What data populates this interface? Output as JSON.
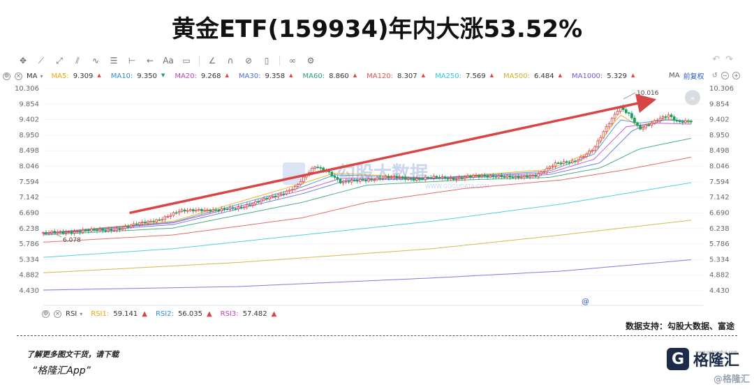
{
  "headline": "黄金ETF(159934)年内大涨53.52%",
  "toolbar": {
    "icons": [
      "crosshair-icon",
      "line-icon",
      "ray-icon",
      "channel-icon",
      "wave-icon",
      "fib-icon",
      "range-icon",
      "arrow-left-icon",
      "text-icon",
      "note-icon",
      "ruler-icon",
      "magnet-icon",
      "hide-icon",
      "trash-icon",
      "link-icon",
      "settings-icon"
    ],
    "text_tool": "Aa"
  },
  "ma_label": "MA",
  "ma_lines": [
    {
      "name": "MA5:",
      "value": "9.309",
      "color": "#f0a500",
      "dir": "▲"
    },
    {
      "name": "MA10:",
      "value": "9.350",
      "color": "#2a8bd8",
      "dir": "▼"
    },
    {
      "name": "MA20:",
      "value": "9.268",
      "color": "#c040c0",
      "dir": "▲"
    },
    {
      "name": "MA30:",
      "value": "9.358",
      "color": "#4a6fe0",
      "dir": "▲"
    },
    {
      "name": "MA60:",
      "value": "8.860",
      "color": "#2aa070",
      "dir": "▲"
    },
    {
      "name": "MA120:",
      "value": "8.307",
      "color": "#e05050",
      "dir": "▲"
    },
    {
      "name": "MA250:",
      "value": "7.569",
      "color": "#30c8d8",
      "dir": "▲"
    },
    {
      "name": "MA500:",
      "value": "6.484",
      "color": "#c8b030",
      "dir": "▲"
    },
    {
      "name": "MA1000:",
      "value": "5.329",
      "color": "#7a5ad8",
      "dir": "▲"
    }
  ],
  "ma_right_label": "MA",
  "adjust_label": "前复权",
  "rsi_label": "RSI",
  "rsi_lines": [
    {
      "name": "RSI1:",
      "value": "59.141",
      "color": "#f0a500",
      "dir": "▲"
    },
    {
      "name": "RSI2:",
      "value": "56.035",
      "color": "#2a8bd8",
      "dir": "▲"
    },
    {
      "name": "RSI3:",
      "value": "57.482",
      "color": "#c040c0",
      "dir": "▲"
    }
  ],
  "watermark": {
    "text": "勾股大数据",
    "url": "WWW.GOGUDATA.COM"
  },
  "source": "数据支持：勾股大数据、富途",
  "download_text": "了解更多图文干货，请下载",
  "app_text": "“格隆汇App”",
  "brand": {
    "logo": "G",
    "name": "格隆汇",
    "url": "www.gelonghui.com",
    "footer": "@格隆汇"
  },
  "colors": {
    "up": "#e04040",
    "down": "#1a9e5a",
    "arrow": "#d84545"
  },
  "chart_data": {
    "type": "candlestick",
    "y_ticks": [
      "10.306",
      "9.854",
      "9.402",
      "8.950",
      "8.498",
      "8.046",
      "7.594",
      "7.142",
      "6.690",
      "6.238",
      "5.786",
      "5.334",
      "4.882",
      "4.430"
    ],
    "ylim": [
      4.43,
      10.306
    ],
    "annotations": {
      "high": "10.016",
      "low": "6.078"
    },
    "close_path": [
      [
        0,
        6.1
      ],
      [
        0.03,
        6.12
      ],
      [
        0.06,
        6.18
      ],
      [
        0.09,
        6.17
      ],
      [
        0.12,
        6.25
      ],
      [
        0.15,
        6.38
      ],
      [
        0.18,
        6.52
      ],
      [
        0.21,
        6.72
      ],
      [
        0.24,
        6.8
      ],
      [
        0.27,
        6.75
      ],
      [
        0.3,
        6.85
      ],
      [
        0.33,
        7.0
      ],
      [
        0.36,
        7.2
      ],
      [
        0.39,
        7.45
      ],
      [
        0.42,
        8.05
      ],
      [
        0.44,
        7.9
      ],
      [
        0.46,
        7.55
      ],
      [
        0.49,
        7.65
      ],
      [
        0.52,
        7.7
      ],
      [
        0.55,
        7.72
      ],
      [
        0.58,
        7.68
      ],
      [
        0.61,
        7.72
      ],
      [
        0.64,
        7.7
      ],
      [
        0.67,
        7.75
      ],
      [
        0.7,
        7.78
      ],
      [
        0.73,
        7.7
      ],
      [
        0.76,
        7.8
      ],
      [
        0.79,
        8.1
      ],
      [
        0.82,
        8.2
      ],
      [
        0.85,
        8.55
      ],
      [
        0.87,
        9.2
      ],
      [
        0.89,
        9.8
      ],
      [
        0.905,
        9.55
      ],
      [
        0.92,
        9.1
      ],
      [
        0.935,
        9.25
      ],
      [
        0.95,
        9.45
      ],
      [
        0.965,
        9.55
      ],
      [
        0.98,
        9.3
      ],
      [
        1.0,
        9.35
      ]
    ],
    "ma_series": {
      "MA5": [
        [
          0,
          6.1
        ],
        [
          0.2,
          6.45
        ],
        [
          0.4,
          7.55
        ],
        [
          0.45,
          7.85
        ],
        [
          0.6,
          7.7
        ],
        [
          0.78,
          7.95
        ],
        [
          0.85,
          8.5
        ],
        [
          0.89,
          9.55
        ],
        [
          0.92,
          9.2
        ],
        [
          0.96,
          9.45
        ],
        [
          1.0,
          9.31
        ]
      ],
      "MA10": [
        [
          0,
          6.1
        ],
        [
          0.2,
          6.42
        ],
        [
          0.4,
          7.45
        ],
        [
          0.45,
          7.8
        ],
        [
          0.6,
          7.7
        ],
        [
          0.78,
          7.9
        ],
        [
          0.85,
          8.4
        ],
        [
          0.89,
          9.4
        ],
        [
          0.92,
          9.3
        ],
        [
          0.96,
          9.4
        ],
        [
          1.0,
          9.35
        ]
      ],
      "MA20": [
        [
          0,
          6.09
        ],
        [
          0.2,
          6.4
        ],
        [
          0.4,
          7.35
        ],
        [
          0.46,
          7.7
        ],
        [
          0.6,
          7.7
        ],
        [
          0.78,
          7.85
        ],
        [
          0.85,
          8.25
        ],
        [
          0.9,
          9.2
        ],
        [
          0.95,
          9.3
        ],
        [
          1.0,
          9.27
        ]
      ],
      "MA30": [
        [
          0,
          6.08
        ],
        [
          0.2,
          6.35
        ],
        [
          0.4,
          7.25
        ],
        [
          0.47,
          7.65
        ],
        [
          0.6,
          7.68
        ],
        [
          0.78,
          7.8
        ],
        [
          0.86,
          8.15
        ],
        [
          0.91,
          9.1
        ],
        [
          0.96,
          9.4
        ],
        [
          1.0,
          9.36
        ]
      ],
      "MA60": [
        [
          0,
          6.05
        ],
        [
          0.2,
          6.25
        ],
        [
          0.4,
          7.0
        ],
        [
          0.5,
          7.5
        ],
        [
          0.65,
          7.65
        ],
        [
          0.78,
          7.72
        ],
        [
          0.86,
          8.0
        ],
        [
          0.92,
          8.55
        ],
        [
          1.0,
          8.86
        ]
      ],
      "MA120": [
        [
          0,
          5.84
        ],
        [
          0.2,
          6.05
        ],
        [
          0.4,
          6.55
        ],
        [
          0.5,
          7.0
        ],
        [
          0.65,
          7.4
        ],
        [
          0.8,
          7.65
        ],
        [
          0.9,
          7.95
        ],
        [
          1.0,
          8.31
        ]
      ],
      "MA250": [
        [
          0,
          5.4
        ],
        [
          0.2,
          5.65
        ],
        [
          0.4,
          6.05
        ],
        [
          0.6,
          6.45
        ],
        [
          0.8,
          6.95
        ],
        [
          1.0,
          7.57
        ]
      ],
      "MA500": [
        [
          0,
          4.95
        ],
        [
          0.3,
          5.25
        ],
        [
          0.6,
          5.65
        ],
        [
          0.8,
          6.05
        ],
        [
          1.0,
          6.48
        ]
      ],
      "MA1000": [
        [
          0,
          4.45
        ],
        [
          0.3,
          4.55
        ],
        [
          0.6,
          4.8
        ],
        [
          0.8,
          5.0
        ],
        [
          1.0,
          5.33
        ]
      ]
    },
    "trend_arrow": {
      "from": [
        0.09,
        6.69
      ],
      "to": [
        1.0,
        9.95
      ]
    }
  }
}
